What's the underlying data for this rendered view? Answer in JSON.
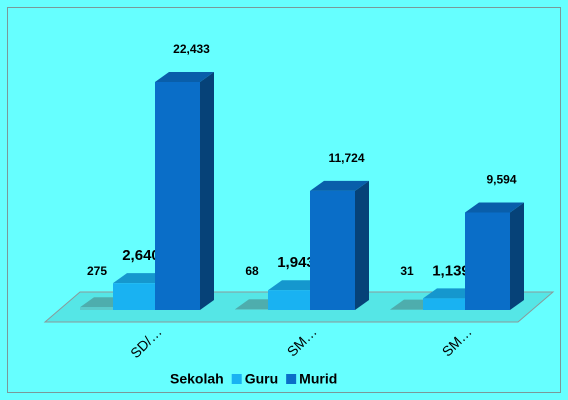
{
  "chart_data": {
    "type": "bar3d",
    "categories": [
      "SD/…",
      "SM…",
      "SM…"
    ],
    "series": [
      {
        "name": "Sekolah",
        "color": "#5ccccc",
        "values": [
          275,
          68,
          31
        ],
        "value_labels": [
          "275",
          "68",
          "31"
        ]
      },
      {
        "name": "Guru",
        "color": "#19b2f2",
        "values": [
          2640,
          1943,
          1139
        ],
        "value_labels": [
          "2,640",
          "1,943",
          "1,139"
        ]
      },
      {
        "name": "Murid",
        "color": "#0a6ec8",
        "values": [
          22433,
          11724,
          9594
        ],
        "value_labels": [
          "22,433",
          "11,724",
          "9,594"
        ]
      }
    ]
  }
}
